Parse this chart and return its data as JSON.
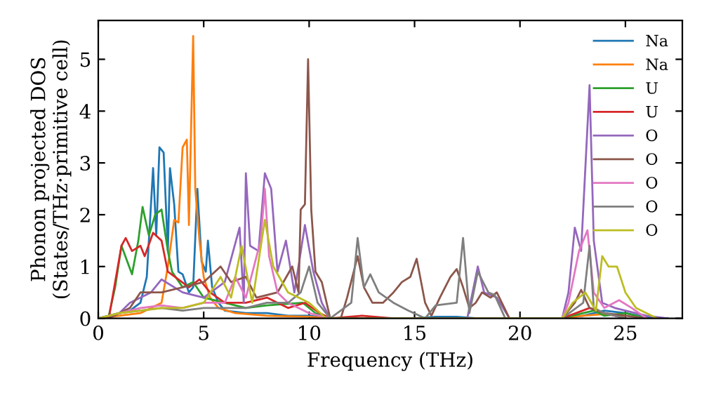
{
  "chart_data": {
    "type": "line",
    "xlabel": "Frequency (THz)",
    "ylabel": "Phonon projected DOS\n(States/THz·primitive cell)",
    "xlim": [
      0,
      27.7
    ],
    "ylim": [
      0,
      5.75
    ],
    "xticks": [
      0,
      5,
      10,
      15,
      20,
      25
    ],
    "yticks": [
      0,
      1,
      2,
      3,
      4,
      5
    ],
    "grid": false,
    "legend": "top right",
    "marker": "none",
    "line_style": "solid",
    "series": [
      {
        "name": "Na",
        "color": "#1f77b4",
        "x": [
          1,
          1.5,
          2,
          2.3,
          2.6,
          2.75,
          2.9,
          3.1,
          3.3,
          3.4,
          3.6,
          3.8,
          4.0,
          4.3,
          4.5,
          4.7,
          4.9,
          5.1,
          5.2,
          5.4,
          5.7,
          6,
          7,
          8,
          9,
          10,
          11,
          15,
          16,
          17,
          18,
          22,
          23,
          24,
          25,
          26,
          27
        ],
        "values": [
          0.1,
          0.15,
          0.3,
          0.8,
          2.9,
          1.6,
          3.3,
          3.2,
          1.3,
          2.9,
          2.2,
          0.9,
          0.85,
          0.5,
          0.6,
          2.5,
          1.1,
          0.9,
          1.5,
          0.6,
          0.3,
          0.15,
          0.1,
          0.1,
          0.05,
          0.05,
          0,
          0,
          0.03,
          0.03,
          0,
          0,
          0.05,
          0.15,
          0.1,
          0.02,
          0
        ]
      },
      {
        "name": "Na",
        "color": "#ff7f0e",
        "x": [
          0,
          1,
          2,
          3,
          3.3,
          3.6,
          3.8,
          4.0,
          4.2,
          4.3,
          4.5,
          4.6,
          4.8,
          5.0,
          5.3,
          5.7,
          6.5,
          8,
          10,
          11,
          22,
          23,
          24,
          25
        ],
        "values": [
          0,
          0.05,
          0.1,
          0.3,
          1.0,
          1.9,
          1.85,
          3.3,
          3.45,
          1.8,
          5.45,
          2.5,
          1.5,
          0.8,
          0.4,
          0.2,
          0.1,
          0.05,
          0.03,
          0,
          0,
          0.05,
          0.08,
          0.05
        ]
      },
      {
        "name": "U",
        "color": "#2ca02c",
        "x": [
          0,
          0.5,
          0.8,
          1.1,
          1.6,
          1.9,
          2.1,
          2.4,
          2.7,
          3.0,
          3.3,
          3.5,
          4,
          4.5,
          5,
          6,
          7,
          8,
          9.7,
          10.3,
          11,
          22,
          23,
          23.5,
          24,
          25,
          26
        ],
        "values": [
          0,
          0.05,
          0.6,
          1.4,
          0.85,
          1.5,
          2.15,
          1.6,
          2.0,
          2.1,
          1.3,
          0.9,
          0.6,
          0.7,
          0.4,
          0.3,
          0.2,
          0.25,
          0.3,
          0.1,
          0,
          0,
          0.1,
          0.15,
          0.05,
          0.1,
          0
        ]
      },
      {
        "name": "U",
        "color": "#d62728",
        "x": [
          0,
          0.5,
          1.1,
          1.3,
          1.6,
          2.0,
          2.2,
          2.6,
          3.0,
          3.3,
          3.8,
          4.3,
          4.8,
          5.3,
          6,
          7,
          8,
          9,
          9.8,
          10.5,
          11,
          12.5,
          14,
          22,
          23.3,
          24,
          25
        ],
        "values": [
          0,
          0,
          1.4,
          1.55,
          1.3,
          1.4,
          1.2,
          1.65,
          1.5,
          0.9,
          0.75,
          0.6,
          0.75,
          0.5,
          0.3,
          0.3,
          0.4,
          0.2,
          0.3,
          0.1,
          0,
          0.05,
          0,
          0,
          0.2,
          0.1,
          0
        ]
      },
      {
        "name": "O",
        "color": "#9467bd",
        "x": [
          0,
          1,
          1.5,
          2.5,
          3,
          4,
          5,
          6,
          6.7,
          6.9,
          7.0,
          7.2,
          7.6,
          7.9,
          8.2,
          8.5,
          8.9,
          9.3,
          9.8,
          10.2,
          10.6,
          11,
          17.5,
          18.0,
          18.3,
          18.9,
          19.5,
          22,
          22.3,
          22.6,
          22.9,
          23.3,
          23.5,
          23.9,
          24.5,
          25,
          26,
          27
        ],
        "values": [
          0,
          0.1,
          0.3,
          0.5,
          0.75,
          0.5,
          0.4,
          0.7,
          1.75,
          0.3,
          2.8,
          1.4,
          1.3,
          2.8,
          2.5,
          0.9,
          1.5,
          0.5,
          1.8,
          0.9,
          0.3,
          0,
          0,
          1.0,
          0.5,
          0.4,
          0,
          0,
          0.5,
          1.75,
          1.3,
          4.5,
          1.5,
          0.3,
          0.2,
          0.15,
          0.05,
          0
        ]
      },
      {
        "name": "O",
        "color": "#8c564b",
        "x": [
          0,
          0.5,
          1.5,
          2,
          3,
          4,
          5,
          5.8,
          6.3,
          7,
          7.5,
          8.5,
          9.2,
          9.5,
          9.6,
          9.8,
          9.95,
          10.1,
          10.3,
          10.6,
          11.0,
          11.5,
          11.8,
          12.3,
          12.6,
          13.0,
          13.5,
          14.0,
          14.4,
          14.8,
          15.1,
          15.5,
          15.8,
          16.2,
          16.7,
          17.0,
          17.3,
          17.6,
          17.9,
          18.2,
          18.6,
          18.9,
          19.5,
          22,
          22.6,
          22.9,
          23.3,
          24,
          25,
          26
        ],
        "values": [
          0,
          0,
          0.2,
          0.5,
          0.5,
          0.6,
          0.7,
          1.0,
          0.7,
          0.8,
          0.4,
          0.5,
          1.0,
          0.5,
          2.1,
          2.2,
          5.0,
          2.1,
          0.9,
          0.7,
          0,
          0,
          0.4,
          1.2,
          0.6,
          0.3,
          0.3,
          0.5,
          0.7,
          0.8,
          1.15,
          0.3,
          0.05,
          0.4,
          0.8,
          0.95,
          0.6,
          0.2,
          0.3,
          0.5,
          0.4,
          0.5,
          0,
          0,
          0.3,
          0.55,
          0.2,
          0.1,
          0.05,
          0
        ]
      },
      {
        "name": "O",
        "color": "#e377c2",
        "x": [
          0,
          1,
          2,
          3,
          4,
          5,
          6,
          6.5,
          7,
          7.7,
          7.9,
          8.1,
          8.5,
          9,
          10,
          11,
          22,
          22.3,
          22.8,
          23.2,
          23.5,
          24,
          24.7,
          25.3,
          26
        ],
        "values": [
          0,
          0.1,
          0.2,
          0.25,
          0.2,
          0.3,
          0.3,
          0.8,
          0.4,
          1.5,
          2.5,
          1.2,
          0.5,
          0.3,
          0.1,
          0,
          0,
          0.3,
          1.3,
          1.7,
          0.5,
          0.2,
          0.35,
          0.2,
          0
        ]
      },
      {
        "name": "O",
        "color": "#7f7f7f",
        "x": [
          0,
          1,
          2,
          3,
          4,
          5,
          6,
          7,
          8,
          9,
          9.6,
          10.0,
          10.4,
          11,
          12,
          12.3,
          12.6,
          12.9,
          13.3,
          14,
          14.7,
          15.5,
          16,
          17,
          17.3,
          17.6,
          18.0,
          18.5,
          18.8,
          19.3,
          22,
          23,
          23.3,
          23.5,
          24,
          25
        ],
        "values": [
          0,
          0.1,
          0.15,
          0.2,
          0.15,
          0.2,
          0.2,
          0.2,
          0.3,
          0.3,
          0.5,
          1.0,
          0.3,
          0,
          0.3,
          1.55,
          0.6,
          0.85,
          0.5,
          0.3,
          0.15,
          0,
          0.25,
          0.3,
          1.55,
          0.1,
          0.9,
          0.5,
          0.45,
          0,
          0,
          0.3,
          1.4,
          0.2,
          0.1,
          0
        ]
      },
      {
        "name": "O",
        "color": "#bcbd22",
        "x": [
          0,
          1,
          2,
          3,
          4,
          5,
          5.8,
          6.3,
          6.8,
          7.3,
          7.9,
          8.3,
          9,
          9.5,
          10,
          10.8,
          22,
          22.5,
          23.1,
          23.6,
          23.9,
          24.2,
          24.6,
          25,
          25.5,
          26,
          26.5
        ],
        "values": [
          0,
          0.1,
          0.15,
          0.2,
          0.2,
          0.3,
          0.8,
          0.4,
          1.4,
          0.3,
          1.9,
          1.0,
          0.5,
          0.4,
          0.3,
          0,
          0,
          0.3,
          0.5,
          0.15,
          1.2,
          1.0,
          1.0,
          0.5,
          0.2,
          0.1,
          0
        ]
      }
    ]
  }
}
